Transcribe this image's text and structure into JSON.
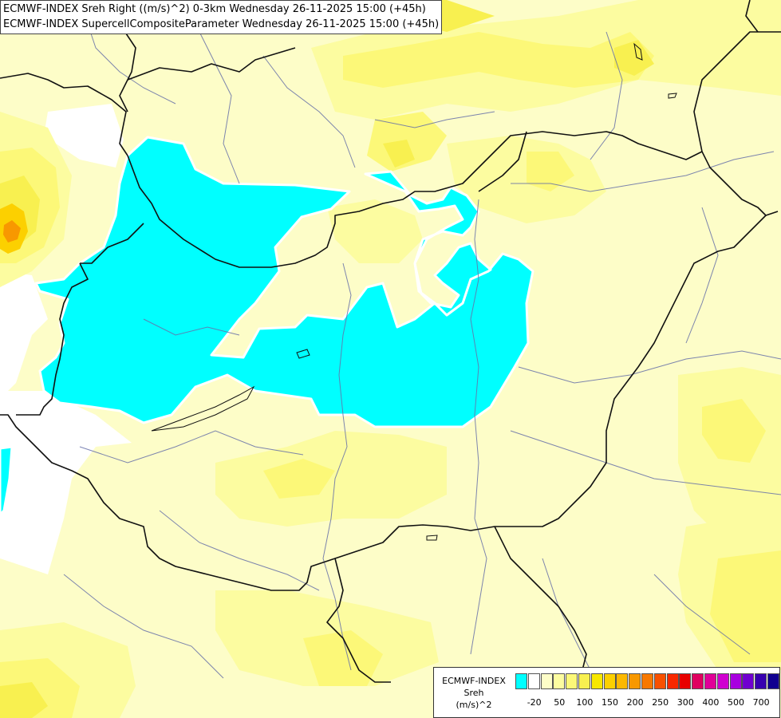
{
  "titles": {
    "line1": "ECMWF-INDEX Sreh Right ((m/s)^2) 0-3km Wednesday 26-11-2025 15:00 (+45h)",
    "line2": "ECMWF-INDEX SupercellCompositeParameter Wednesday 26-11-2025 15:00 (+45h)"
  },
  "legend": {
    "line1": "ECMWF-INDEX",
    "line2": "Sreh",
    "line3": "(m/s)^2",
    "ticks": [
      "-20",
      "50",
      "100",
      "150",
      "200",
      "250",
      "300",
      "400",
      "500",
      "700"
    ],
    "colors": [
      "#00ffff",
      "#ffffff",
      "#fdfdc8",
      "#fcfca0",
      "#fcf878",
      "#f8f050",
      "#f8e800",
      "#fcd000",
      "#fcb800",
      "#f89800",
      "#f87800",
      "#f85000",
      "#f82800",
      "#e80000",
      "#e00060",
      "#e00098",
      "#d000d0",
      "#a800e0",
      "#7000d0",
      "#3800b0",
      "#100090"
    ],
    "scale_note": "Sreh"
  },
  "map": {
    "background_color": "#fdfdc8",
    "cyan_color": "#00ffff",
    "yellow_colors": [
      "#fcfca0",
      "#fcf878",
      "#f8f050"
    ],
    "orange_colors": [
      "#fcd000",
      "#f89800"
    ]
  }
}
